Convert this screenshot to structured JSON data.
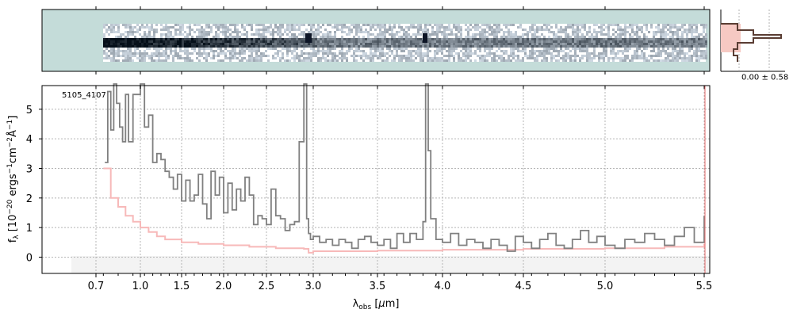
{
  "chart_data": {
    "type": "line",
    "object_id": "5105_4107",
    "xlabel": "λobs [μm]",
    "ylabel": "fλ [10⁻²⁰ ergs⁻¹cm⁻²Å⁻¹]",
    "ylim": [
      -0.55,
      5.8
    ],
    "y_ticks": [
      0,
      1,
      2,
      3,
      4,
      5
    ],
    "x_ticks": [
      "0.7",
      "1.0",
      "1.5",
      "2.0",
      "2.5",
      "3.0",
      "3.5",
      "4.0",
      "4.5",
      "5.0",
      "5.5"
    ],
    "x_scale": "piecewise (stretched below 3.0 μm)",
    "grid": true,
    "spectrum_2d_panel": true,
    "profile_panel": {
      "label": "0.00 ± 0.58"
    },
    "series": [
      {
        "role": "flux",
        "color": "#808080",
        "x": [
          0.76,
          0.78,
          0.8,
          0.82,
          0.84,
          0.86,
          0.88,
          0.9,
          0.92,
          0.95,
          1.0,
          1.05,
          1.1,
          1.15,
          1.2,
          1.25,
          1.3,
          1.35,
          1.4,
          1.45,
          1.5,
          1.55,
          1.6,
          1.65,
          1.7,
          1.75,
          1.8,
          1.85,
          1.9,
          1.95,
          2.0,
          2.05,
          2.1,
          2.15,
          2.2,
          2.25,
          2.3,
          2.35,
          2.4,
          2.45,
          2.5,
          2.55,
          2.6,
          2.65,
          2.7,
          2.75,
          2.8,
          2.85,
          2.9,
          2.93,
          2.95,
          2.97,
          3.0,
          3.05,
          3.1,
          3.15,
          3.2,
          3.25,
          3.3,
          3.35,
          3.4,
          3.45,
          3.5,
          3.55,
          3.6,
          3.65,
          3.7,
          3.75,
          3.8,
          3.85,
          3.87,
          3.89,
          3.91,
          3.95,
          4.0,
          4.05,
          4.1,
          4.15,
          4.2,
          4.25,
          4.3,
          4.35,
          4.4,
          4.45,
          4.5,
          4.55,
          4.6,
          4.65,
          4.7,
          4.75,
          4.8,
          4.85,
          4.9,
          4.95,
          5.0,
          5.05,
          5.1,
          5.15,
          5.2,
          5.25,
          5.3,
          5.35,
          5.4,
          5.45,
          5.5
        ],
        "y": [
          3.2,
          5.6,
          4.3,
          6,
          5.2,
          4.4,
          3.9,
          5.5,
          3.9,
          5.5,
          6,
          4.4,
          4.8,
          3.2,
          3.5,
          3.3,
          2.9,
          2.7,
          2.3,
          2.8,
          1.9,
          2.6,
          1.9,
          2.1,
          2.8,
          1.8,
          1.3,
          2.9,
          2.1,
          2.7,
          1.5,
          2.5,
          1.6,
          2.3,
          1.9,
          2.7,
          2.1,
          1.1,
          1.4,
          1.3,
          1.1,
          2.3,
          1.4,
          1.3,
          0.9,
          1.1,
          1.2,
          3.9,
          6.2,
          1.3,
          0.8,
          0.6,
          0.7,
          0.5,
          0.6,
          0.4,
          0.6,
          0.5,
          0.3,
          0.6,
          0.7,
          0.5,
          0.4,
          0.6,
          0.3,
          0.8,
          0.5,
          0.8,
          0.6,
          1.2,
          6,
          3.6,
          1.3,
          0.6,
          0.5,
          0.8,
          0.4,
          0.6,
          0.5,
          0.3,
          0.6,
          0.4,
          0.2,
          0.7,
          0.5,
          0.3,
          0.6,
          0.8,
          0.4,
          0.3,
          0.6,
          0.9,
          0.5,
          0.7,
          0.4,
          0.3,
          0.6,
          0.5,
          0.8,
          0.6,
          0.4,
          0.7,
          1,
          0.5,
          1.4
        ]
      },
      {
        "role": "uncertainty",
        "color": "#f7b9b9",
        "x": [
          0.75,
          0.8,
          0.85,
          0.9,
          0.95,
          1.0,
          1.1,
          1.2,
          1.3,
          1.5,
          1.7,
          2.0,
          2.3,
          2.6,
          2.9,
          2.95,
          3.0,
          3.5,
          4.0,
          4.5,
          5.0,
          5.3,
          5.5
        ],
        "y": [
          3,
          2,
          1.7,
          1.4,
          1.2,
          1.0,
          0.85,
          0.7,
          0.6,
          0.5,
          0.45,
          0.4,
          0.35,
          0.3,
          0.28,
          0.15,
          0.2,
          0.22,
          0.25,
          0.28,
          0.3,
          0.35,
          0.45
        ]
      }
    ]
  }
}
